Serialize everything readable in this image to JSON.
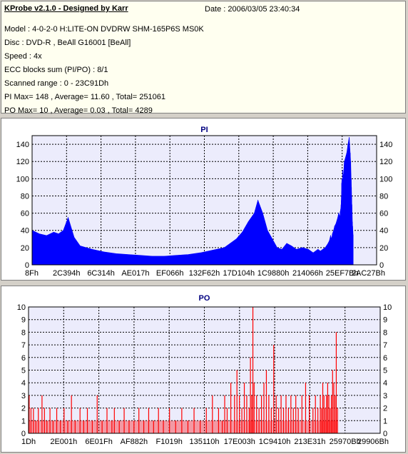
{
  "info": {
    "title": "KProbe v2.1.0 - Designed by Karr",
    "date": "Date : 2006/03/05 23:40:34",
    "lines": [
      "Model : 4-0-2-0 H:LITE-ON DVDRW SHM-165P6S MS0K",
      "Disc : DVD-R , BeAll G16001 [BeAll]",
      "Speed : 4x",
      "ECC blocks sum (PI/PO) : 8/1",
      "Scanned range : 0 - 23C91Dh",
      "PI Max= 148 , Average= 11.60 , Total= 251061",
      "PO Max= 10 , Average= 0.03 , Total= 4289"
    ]
  },
  "colors": {
    "pi_series": "#0000ff",
    "po_series": "#ff0000",
    "plot_bg": "#ececfc",
    "title_text": "#000080"
  },
  "chart_data": [
    {
      "type": "area",
      "title": "PI",
      "ylim": [
        0,
        150
      ],
      "xlim": [
        0,
        2868236
      ],
      "yticks": [
        0,
        20,
        40,
        60,
        80,
        100,
        120,
        140
      ],
      "xtick_labels": [
        "8Fh",
        "2C394h",
        "6C314h",
        "AE017h",
        "EF066h",
        "132F62h",
        "17D104h",
        "1C9880h",
        "214066h",
        "25EF7Bh",
        "2AC27Bh"
      ],
      "grid": true,
      "series": [
        {
          "x": [
            0,
            60000,
            120000,
            180000,
            220000,
            260000,
            300000,
            350000,
            400000,
            500000,
            600000,
            700000,
            800000,
            900000,
            1000000,
            1100000,
            1200000,
            1300000,
            1400000,
            1500000,
            1600000,
            1650000,
            1700000,
            1750000,
            1800000,
            1850000,
            1880000,
            1920000,
            1960000,
            2000000,
            2040000,
            2080000,
            2120000,
            2160000,
            2200000,
            2250000,
            2300000,
            2340000,
            2380000,
            2400000,
            2420000,
            2440000,
            2460000,
            2475000,
            2485000,
            2494000,
            2500000,
            2510000,
            2519000,
            2530000,
            2545000,
            2552000,
            2557000,
            2562000,
            2566000,
            2570000,
            2573000,
            2575000,
            2576000,
            2577000,
            2578000,
            2580000,
            2582000,
            2584000,
            2586000,
            2590000,
            2600000,
            2620000,
            2630000,
            2640000,
            2648000,
            2652000,
            2656000,
            2658000,
            2660000,
            2662000,
            2664000,
            2666000,
            2668000,
            2670000,
            2672000
          ],
          "y": [
            40,
            36,
            34,
            38,
            36,
            40,
            55,
            32,
            22,
            18,
            15,
            13,
            12,
            11,
            10,
            10,
            11,
            12,
            14,
            17,
            20,
            25,
            30,
            38,
            50,
            60,
            75,
            60,
            40,
            30,
            20,
            18,
            25,
            22,
            18,
            20,
            18,
            14,
            18,
            16,
            18,
            20,
            24,
            28,
            34,
            30,
            36,
            40,
            45,
            48,
            55,
            60,
            58,
            55,
            62,
            65,
            70,
            75,
            80,
            85,
            95,
            100,
            90,
            85,
            110,
            100,
            120,
            130,
            140,
            148,
            130,
            120,
            100,
            90,
            80,
            70,
            60,
            50,
            45,
            40,
            35
          ]
        }
      ]
    },
    {
      "type": "bar",
      "title": "PO",
      "ylim": [
        0,
        10
      ],
      "xlim": [
        0,
        2868236
      ],
      "yticks": [
        0,
        1,
        2,
        3,
        4,
        5,
        6,
        7,
        8,
        9,
        10
      ],
      "xtick_labels": [
        "1Dh",
        "2E001h",
        "6E01Fh",
        "AF882h",
        "F1019h",
        "135110h",
        "17E003h",
        "1C9410h",
        "213E31h",
        "25970Bh",
        "29906Bh"
      ],
      "grid": true,
      "series": [
        {
          "x": [
            5000,
            20000,
            40000,
            60000,
            80000,
            110000,
            130000,
            150000,
            175000,
            200000,
            230000,
            260000,
            290000,
            320000,
            350000,
            380000,
            420000,
            450000,
            480000,
            520000,
            560000,
            600000,
            640000,
            680000,
            700000,
            740000,
            780000,
            820000,
            860000,
            900000,
            940000,
            980000,
            1020000,
            1060000,
            1100000,
            1150000,
            1200000,
            1250000,
            1300000,
            1350000,
            1400000,
            1450000,
            1500000,
            1550000,
            1580000,
            1600000,
            1620000,
            1650000,
            1680000,
            1700000,
            1720000,
            1740000,
            1760000,
            1780000,
            1800000,
            1810000,
            1820000,
            1830000,
            1840000,
            1860000,
            1880000,
            1900000,
            1920000,
            1940000,
            1960000,
            1980000,
            2000000,
            2020000,
            2040000,
            2060000,
            2080000,
            2100000,
            2120000,
            2140000,
            2160000,
            2180000,
            2200000,
            2230000,
            2260000,
            2290000,
            2320000,
            2340000,
            2360000,
            2380000,
            2390000,
            2400000,
            2410000,
            2420000,
            2430000,
            2440000,
            2450000,
            2460000,
            2470000,
            2480000,
            2490000,
            2500000,
            2510000,
            2520000
          ],
          "y": [
            3,
            2,
            2,
            1,
            2,
            3,
            2,
            1,
            2,
            1,
            2,
            1,
            2,
            1,
            3,
            1,
            2,
            1,
            2,
            1,
            3,
            1,
            2,
            1,
            2,
            1,
            2,
            1,
            1,
            2,
            1,
            2,
            1,
            2,
            1,
            2,
            1,
            2,
            1,
            2,
            1,
            2,
            3,
            2,
            1,
            3,
            2,
            4,
            3,
            5,
            3,
            2,
            4,
            3,
            2,
            6,
            3,
            10,
            4,
            3,
            2,
            3,
            4,
            5,
            3,
            2,
            7,
            3,
            2,
            3,
            2,
            3,
            2,
            3,
            2,
            3,
            2,
            3,
            4,
            3,
            2,
            3,
            2,
            3,
            2,
            4,
            3,
            2,
            3,
            4,
            3,
            2,
            3,
            5,
            4,
            3,
            8,
            2
          ]
        }
      ]
    }
  ]
}
